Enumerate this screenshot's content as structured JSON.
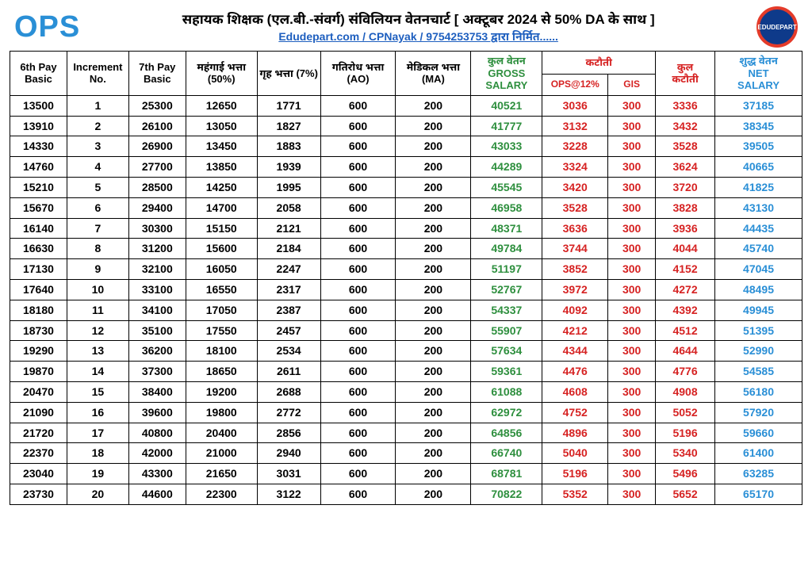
{
  "header": {
    "logo_text": "OPS",
    "logo_color": "#2a8fd6",
    "title": "सहायक शिक्षक (एल.बी.-संवर्ग) संविलियन वेतनचार्ट [ अक्टूबर 2024 से 50% DA के साथ ]",
    "subtitle": "Edudepart.com / CPNayak / 9754253753 द्वारा निर्मित......",
    "subtitle_color": "#1e5fbf",
    "badge_text": "EDUDEPART",
    "badge_bg": "#0e3a8a",
    "badge_border": "#e43b2a"
  },
  "colors": {
    "gross": "#2e8f3e",
    "deduction": "#d62222",
    "net": "#2a8fd6",
    "black": "#000000"
  },
  "columns": {
    "c0": "6th Pay Basic",
    "c1": "Increment No.",
    "c2": "7th Pay Basic",
    "c3": "महंगाई भत्ता (50%)",
    "c4": "गृह भत्ता (7%)",
    "c5": "गतिरोध भत्ता (AO)",
    "c6": "मेडिकल भत्ता (MA)",
    "c7a": "कुल वेतन",
    "c7b": "GROSS",
    "c7c": "SALARY",
    "c8": "कटौती",
    "c8a": "OPS@12%",
    "c8b": "GIS",
    "c9a": "कुल",
    "c9b": "कटौती",
    "c10a": "शुद्ध वेतन",
    "c10b": "NET",
    "c10c": "SALARY"
  },
  "rows": [
    [
      "13500",
      "1",
      "25300",
      "12650",
      "1771",
      "600",
      "200",
      "40521",
      "3036",
      "300",
      "3336",
      "37185"
    ],
    [
      "13910",
      "2",
      "26100",
      "13050",
      "1827",
      "600",
      "200",
      "41777",
      "3132",
      "300",
      "3432",
      "38345"
    ],
    [
      "14330",
      "3",
      "26900",
      "13450",
      "1883",
      "600",
      "200",
      "43033",
      "3228",
      "300",
      "3528",
      "39505"
    ],
    [
      "14760",
      "4",
      "27700",
      "13850",
      "1939",
      "600",
      "200",
      "44289",
      "3324",
      "300",
      "3624",
      "40665"
    ],
    [
      "15210",
      "5",
      "28500",
      "14250",
      "1995",
      "600",
      "200",
      "45545",
      "3420",
      "300",
      "3720",
      "41825"
    ],
    [
      "15670",
      "6",
      "29400",
      "14700",
      "2058",
      "600",
      "200",
      "46958",
      "3528",
      "300",
      "3828",
      "43130"
    ],
    [
      "16140",
      "7",
      "30300",
      "15150",
      "2121",
      "600",
      "200",
      "48371",
      "3636",
      "300",
      "3936",
      "44435"
    ],
    [
      "16630",
      "8",
      "31200",
      "15600",
      "2184",
      "600",
      "200",
      "49784",
      "3744",
      "300",
      "4044",
      "45740"
    ],
    [
      "17130",
      "9",
      "32100",
      "16050",
      "2247",
      "600",
      "200",
      "51197",
      "3852",
      "300",
      "4152",
      "47045"
    ],
    [
      "17640",
      "10",
      "33100",
      "16550",
      "2317",
      "600",
      "200",
      "52767",
      "3972",
      "300",
      "4272",
      "48495"
    ],
    [
      "18180",
      "11",
      "34100",
      "17050",
      "2387",
      "600",
      "200",
      "54337",
      "4092",
      "300",
      "4392",
      "49945"
    ],
    [
      "18730",
      "12",
      "35100",
      "17550",
      "2457",
      "600",
      "200",
      "55907",
      "4212",
      "300",
      "4512",
      "51395"
    ],
    [
      "19290",
      "13",
      "36200",
      "18100",
      "2534",
      "600",
      "200",
      "57634",
      "4344",
      "300",
      "4644",
      "52990"
    ],
    [
      "19870",
      "14",
      "37300",
      "18650",
      "2611",
      "600",
      "200",
      "59361",
      "4476",
      "300",
      "4776",
      "54585"
    ],
    [
      "20470",
      "15",
      "38400",
      "19200",
      "2688",
      "600",
      "200",
      "61088",
      "4608",
      "300",
      "4908",
      "56180"
    ],
    [
      "21090",
      "16",
      "39600",
      "19800",
      "2772",
      "600",
      "200",
      "62972",
      "4752",
      "300",
      "5052",
      "57920"
    ],
    [
      "21720",
      "17",
      "40800",
      "20400",
      "2856",
      "600",
      "200",
      "64856",
      "4896",
      "300",
      "5196",
      "59660"
    ],
    [
      "22370",
      "18",
      "42000",
      "21000",
      "2940",
      "600",
      "200",
      "66740",
      "5040",
      "300",
      "5340",
      "61400"
    ],
    [
      "23040",
      "19",
      "43300",
      "21650",
      "3031",
      "600",
      "200",
      "68781",
      "5196",
      "300",
      "5496",
      "63285"
    ],
    [
      "23730",
      "20",
      "44600",
      "22300",
      "3122",
      "600",
      "200",
      "70822",
      "5352",
      "300",
      "5652",
      "65170"
    ]
  ]
}
